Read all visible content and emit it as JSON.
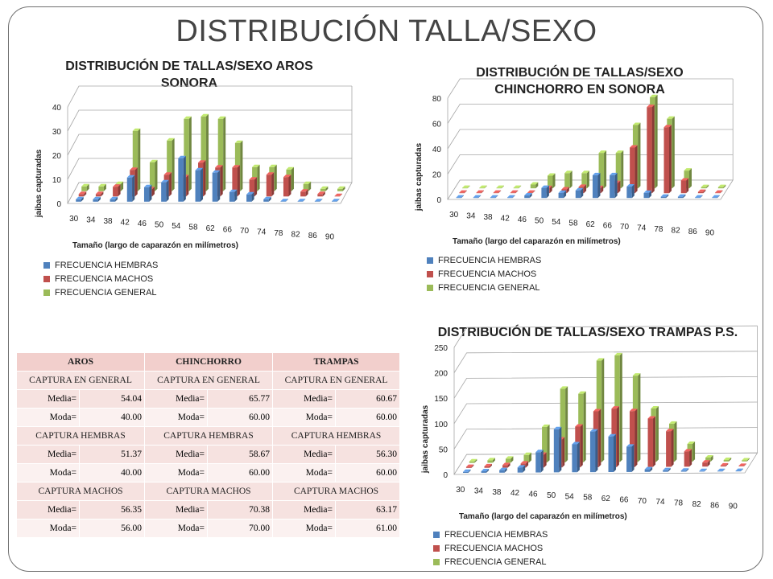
{
  "slide": {
    "title": "DISTRIBUCIÓN TALLA/SEXO"
  },
  "colors": {
    "hembras": "#4f81bd",
    "machos": "#c0504d",
    "general": "#9bbb59"
  },
  "chart_data": [
    {
      "type": "bar",
      "title": "DISTRIBUCIÓN DE TALLAS/SEXO AROS SONORA",
      "xlabel": "Tamaño (largo de caparazón en milímetros)",
      "ylabel": "jaibas capturadas",
      "ylim": [
        0,
        40
      ],
      "yticks": [
        "0",
        "10",
        "20",
        "30",
        "40"
      ],
      "grid": true,
      "legend_position": "bottom-left",
      "categories": [
        "30",
        "34",
        "38",
        "42",
        "46",
        "50",
        "54",
        "58",
        "62",
        "66",
        "70",
        "74",
        "78",
        "82",
        "86",
        "90"
      ],
      "series": [
        {
          "name": "FRECUENCIA HEMBRAS",
          "values": [
            1,
            1,
            1,
            10,
            6,
            8,
            18,
            13,
            12,
            4,
            3,
            1,
            0,
            0,
            0,
            0
          ]
        },
        {
          "name": "FRECUENCIA MACHOS",
          "values": [
            1,
            1,
            4,
            11,
            3,
            9,
            8,
            14,
            12,
            12,
            7,
            9,
            8,
            2,
            1,
            0
          ]
        },
        {
          "name": "FRECUENCIA GENERAL",
          "values": [
            2,
            2,
            3,
            25,
            12,
            21,
            30,
            31,
            30,
            20,
            10,
            10,
            9,
            3,
            1,
            1
          ]
        }
      ]
    },
    {
      "type": "bar",
      "title": "DISTRIBUCIÓN DE TALLAS/SEXO CHINCHORRO EN SONORA",
      "xlabel": "Tamaño (largo del caparazón en milímetros)",
      "ylabel": "jaibas capturadas",
      "ylim": [
        0,
        80
      ],
      "yticks": [
        "0",
        "20",
        "40",
        "60",
        "80"
      ],
      "grid": true,
      "legend_position": "bottom-left",
      "categories": [
        "30",
        "34",
        "38",
        "42",
        "46",
        "50",
        "54",
        "58",
        "62",
        "66",
        "70",
        "74",
        "78",
        "82",
        "86",
        "90"
      ],
      "series": [
        {
          "name": "FRECUENCIA HEMBRAS",
          "values": [
            0,
            0,
            0,
            0,
            2,
            8,
            4,
            6,
            18,
            18,
            9,
            4,
            1,
            1,
            0,
            0
          ]
        },
        {
          "name": "FRECUENCIA MACHOS",
          "values": [
            0,
            0,
            0,
            0,
            0,
            4,
            3,
            5,
            4,
            8,
            36,
            68,
            52,
            10,
            1,
            0
          ]
        },
        {
          "name": "FRECUENCIA GENERAL",
          "values": [
            0,
            0,
            0,
            0,
            3,
            10,
            12,
            12,
            28,
            28,
            50,
            72,
            55,
            14,
            1,
            1
          ]
        }
      ]
    },
    {
      "type": "bar",
      "title": "DISTRIBUCIÓN DE TALLAS/SEXO TRAMPAS P.S.",
      "xlabel": "Tamaño (largo del caparazón en milímetros)",
      "ylabel": "jaibas capturadas",
      "ylim": [
        0,
        250
      ],
      "yticks": [
        "0",
        "50",
        "100",
        "150",
        "200",
        "250"
      ],
      "grid": true,
      "legend_position": "bottom-left",
      "categories": [
        "30",
        "34",
        "38",
        "42",
        "46",
        "50",
        "54",
        "58",
        "62",
        "66",
        "70",
        "74",
        "78",
        "82",
        "86",
        "90"
      ],
      "series": [
        {
          "name": "FRECUENCIA HEMBRAS",
          "values": [
            2,
            3,
            5,
            10,
            40,
            85,
            55,
            80,
            70,
            50,
            5,
            3,
            2,
            1,
            0,
            0
          ]
        },
        {
          "name": "FRECUENCIA MACHOS",
          "values": [
            2,
            3,
            5,
            8,
            25,
            55,
            80,
            110,
            115,
            110,
            95,
            70,
            30,
            8,
            2,
            0
          ]
        },
        {
          "name": "FRECUENCIA GENERAL",
          "values": [
            3,
            5,
            8,
            15,
            70,
            145,
            135,
            200,
            210,
            170,
            105,
            75,
            35,
            8,
            3,
            2
          ]
        }
      ]
    }
  ],
  "table": {
    "headers": [
      "AROS",
      "CHINCHORRO",
      "TRAMPAS"
    ],
    "sections": [
      {
        "label": "CAPTURA EN GENERAL",
        "rows": [
          {
            "label": "Media=",
            "values": [
              "54.04",
              "65.77",
              "60.67"
            ]
          },
          {
            "label": "Moda=",
            "values": [
              "40.00",
              "60.00",
              "60.00"
            ]
          }
        ]
      },
      {
        "label": "CAPTURA HEMBRAS",
        "rows": [
          {
            "label": "Media=",
            "values": [
              "51.37",
              "58.67",
              "56.30"
            ]
          },
          {
            "label": "Moda=",
            "values": [
              "40.00",
              "60.00",
              "60.00"
            ]
          }
        ]
      },
      {
        "label": "CAPTURA MACHOS",
        "rows": [
          {
            "label": "Media=",
            "values": [
              "56.35",
              "70.38",
              "63.17"
            ]
          },
          {
            "label": "Moda=",
            "values": [
              "56.00",
              "70.00",
              "61.00"
            ]
          }
        ]
      }
    ]
  }
}
